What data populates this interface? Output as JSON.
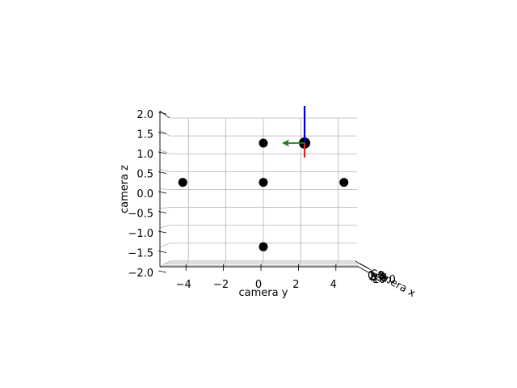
{
  "chart_data": {
    "type": "scatter",
    "projection": "3d",
    "xlabel": "camera x",
    "ylabel": "camera y",
    "zlabel": "camera z",
    "ylim": [
      -5,
      5
    ],
    "zlim": [
      -2,
      2
    ],
    "yticks": [
      "−4",
      "−2",
      "0",
      "2",
      "4"
    ],
    "zticks": [
      "2.0",
      "1.5",
      "1.0",
      "0.5",
      "0.0",
      "−0.5",
      "−1.0",
      "−1.5",
      "−2.0"
    ],
    "xtick_labels_overlapped": [
      "0.0",
      "2.5",
      "5.0",
      "7.5",
      "10.0"
    ],
    "grid": true,
    "points": [
      {
        "y": 0,
        "z": 1.3
      },
      {
        "y": 2.2,
        "z": 1.3
      },
      {
        "y": -4.3,
        "z": 0.2
      },
      {
        "y": 0,
        "z": 0.2
      },
      {
        "y": 4.3,
        "z": 0.2
      },
      {
        "y": 0,
        "z": -1.6
      }
    ],
    "camera_axes": {
      "origin": {
        "y": 2.2,
        "z": 1.3
      },
      "colors": {
        "x": "#d62728",
        "y": "#1a7f1a",
        "z": "#0000cc"
      }
    },
    "point_color": "#000000"
  }
}
